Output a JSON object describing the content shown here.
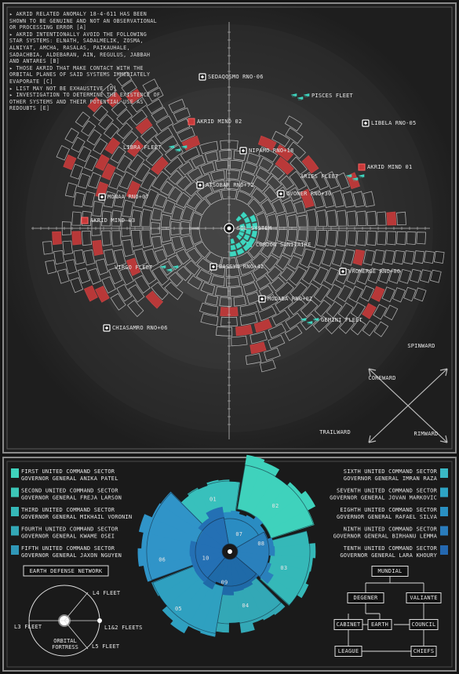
{
  "notes": [
    "▸ AKRID RELATED ANOMALY 18-4-611 HAS BEEN SHOWN TO BE GENUINE AND NOT AN OBSERVATIONAL OR PROCESSING ERROR [A]",
    "▸ AKRID INTENTIONALLY AVOID THE FOLLOWING STAR SYSTEMS: ELNATH, SADALMELIK, ZOSMA, ALNIYAT, AMCHA, RASALAS, PAIKAUHALE, SADACHBIA, ALDEBARAN, AIN, REGULUS, JABBAH AND ANTARES [B]",
    "▸ THOSE AKRID THAT MAKE CONTACT WITH THE ORBITAL PLANES OF SAID SYSTEMS IMMEDIATELY EVAPORATE [C]",
    "▸ LIST MAY NOT BE EXHAUSTIVE [D]",
    "▸ INVESTIGATION TO DETERMINE THE EXISTENCE OF OTHER SYSTEMS AND THEIR POTENTIAL USE AS REDOUBTS [E]"
  ],
  "map": {
    "systems": [
      "SEDAQOSMO RNO-06",
      "LIBELA RNO-05",
      "NIPAMO RNO+18",
      "ATSOBAR RNO+72",
      "OVONER RNO+30",
      "MONAA RNO+07",
      "SOL SYSTEM",
      "BASSYN RNO+42",
      "VROMERGE RNO+00",
      "MODABA RNO+02",
      "CHIASAMRO RNO+06"
    ],
    "akrid_minds": [
      "AKRID MIND 02",
      "AKRID MIND 01",
      "AKRID MIND 03"
    ],
    "fleets": [
      "PISCES FLEET",
      "LIBRA FLEET",
      "ARIES FLEET",
      "VIRGO FLEET",
      "GEMINI FLEET"
    ],
    "cordon": "CORDON SANITAIRE",
    "directions": [
      "SPINWARD",
      "COREWARD",
      "TRAILWARD",
      "RIMWARD"
    ]
  },
  "sectors": [
    {
      "name": "FIRST UNITED COMMAND SECTOR",
      "governor": "GOVERNOR GENERAL ANIKA PATEL",
      "color": "#3fd2bc"
    },
    {
      "name": "SECOND UNITED COMMAND SECTOR",
      "governor": "GOVERNOR GENERAL FREJA LARSON",
      "color": "#3cc6b8"
    },
    {
      "name": "THIRD UNITED COMMAND SECTOR",
      "governor": "GOVERNOR GENERAL MIKHAIL VORONIN",
      "color": "#36b8b8"
    },
    {
      "name": "FOURTH UNITED COMMAND SECTOR",
      "governor": "GOVERNOR GENERAL KWAME OSEI",
      "color": "#33a8b6"
    },
    {
      "name": "FIFTH UNITED COMMAND SECTOR",
      "governor": "GOVERNOR GENERAL JAXON NGUYEN",
      "color": "#3098b8"
    },
    {
      "name": "SIXTH UNITED COMMAND SECTOR",
      "governor": "GOVERNOR GENERAL IMRAN RAZA",
      "color": "#3ab8c4"
    },
    {
      "name": "SEVENTH UNITED COMMAND SECTOR",
      "governor": "GOVERNOR GENERAL JOVAN MARKOVIC",
      "color": "#2ea4c4"
    },
    {
      "name": "EIGHTH UNITED COMMAND SECTOR",
      "governor": "GOVERNOR GENERAL RAFAEL SILVA",
      "color": "#2a90c2"
    },
    {
      "name": "NINTH UNITED COMMAND SECTOR",
      "governor": "GOVERNOR GENERAL BIRHANU LEMMA",
      "color": "#2a7cbc"
    },
    {
      "name": "TENTH UNITED COMMAND SECTOR",
      "governor": "GOVERNOR GENERAL LARA KHOURY",
      "color": "#2468b0"
    }
  ],
  "zones": [
    "01",
    "02",
    "03",
    "04",
    "05",
    "06",
    "07",
    "08",
    "09",
    "10"
  ],
  "defense": {
    "title": "EARTH DEFENSE NETWORK",
    "fleets": [
      "L4 FLEET",
      "L3 FLEET",
      "L1&2 FLEETS",
      "L5 FLEET"
    ],
    "fortress": "ORBITAL FORTRESS"
  },
  "org": [
    "MUNDIAL",
    "DEGENER",
    "VALIANTE",
    "CABINET",
    "EARTH",
    "COUNCIL",
    "LEAGUE",
    "CHIEFS"
  ]
}
